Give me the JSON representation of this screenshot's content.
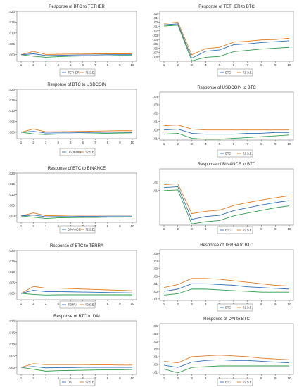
{
  "chart_data": [
    {
      "type": "line",
      "title": "Response of BTC to TETHER",
      "x": [
        1,
        2,
        3,
        4,
        5,
        6,
        7,
        8,
        9,
        10
      ],
      "ylim": [
        -0.003,
        0.02
      ],
      "yticks": [
        0.0,
        0.005,
        0.01,
        0.015,
        0.02
      ],
      "ytick_labels": [
        ".000",
        ".005",
        ".010",
        ".015",
        ".020"
      ],
      "legend": [
        "TETHER",
        "?2 S.E."
      ],
      "series": [
        {
          "name": "TETHER",
          "color": "#2f6fb5",
          "values": [
            0.0,
            0.0004,
            -0.0004,
            -0.0003,
            -0.0002,
            -0.0001,
            -0.0001,
            0.0,
            0.0,
            0.0
          ]
        },
        {
          "name": "?2 S.E.",
          "color": "#e07b20",
          "values": [
            0.0,
            0.0015,
            0.0001,
            0.0002,
            0.0003,
            0.0003,
            0.0004,
            0.0004,
            0.0004,
            0.0004
          ]
        },
        {
          "name": "",
          "color": "#2e9e4a",
          "values": [
            0.0,
            -0.0007,
            -0.0012,
            -0.0009,
            -0.0007,
            -0.0006,
            -0.0005,
            -0.0005,
            -0.0004,
            -0.0004
          ]
        }
      ]
    },
    {
      "type": "line",
      "title": "Response of TETHER to BTC",
      "x": [
        1,
        2,
        3,
        4,
        5,
        6,
        7,
        8,
        9,
        10
      ],
      "ylim": [
        -0.09,
        0.025
      ],
      "yticks": [
        0.02,
        0.01,
        0.0,
        -0.01,
        -0.02,
        -0.03,
        -0.04,
        -0.05,
        -0.06,
        -0.07,
        -0.08
      ],
      "ytick_labels": [
        ".02",
        ".01",
        ".00",
        "-.01",
        "-.02",
        "-.03",
        "-.04",
        "-.05",
        "-.06",
        "-.07",
        "-.08"
      ],
      "legend": [
        "BTC",
        "?2 S.E."
      ],
      "series": [
        {
          "name": "BTC",
          "color": "#2f6fb5",
          "values": [
            -0.006,
            -0.004,
            -0.083,
            -0.067,
            -0.064,
            -0.052,
            -0.05,
            -0.047,
            -0.045,
            -0.043
          ]
        },
        {
          "name": "?2 S.E.",
          "color": "#e07b20",
          "values": [
            -0.003,
            0.0,
            -0.075,
            -0.061,
            -0.058,
            -0.046,
            -0.044,
            -0.041,
            -0.04,
            -0.037
          ]
        },
        {
          "name": "",
          "color": "#2e9e4a",
          "values": [
            -0.009,
            -0.007,
            -0.089,
            -0.081,
            -0.079,
            -0.068,
            -0.065,
            -0.062,
            -0.06,
            -0.058
          ]
        }
      ]
    },
    {
      "type": "line",
      "title": "Response of BTC to USDCOIN",
      "x": [
        1,
        2,
        3,
        4,
        5,
        6,
        7,
        8,
        9,
        10
      ],
      "ylim": [
        -0.003,
        0.02
      ],
      "yticks": [
        0.0,
        0.005,
        0.01,
        0.015,
        0.02
      ],
      "ytick_labels": [
        ".000",
        ".005",
        ".010",
        ".015",
        ".020"
      ],
      "legend": [
        "USDCOIN",
        "?2 S.E."
      ],
      "series": [
        {
          "name": "USDCOIN",
          "color": "#2f6fb5",
          "values": [
            0.0,
            0.0004,
            -0.0004,
            -0.0003,
            -0.0003,
            -0.0002,
            -0.0001,
            0.0,
            0.0,
            0.0
          ]
        },
        {
          "name": "?2 S.E.",
          "color": "#e07b20",
          "values": [
            0.0,
            0.0015,
            0.0002,
            0.0002,
            0.0003,
            0.0004,
            0.0005,
            0.0006,
            0.0007,
            0.0007
          ]
        },
        {
          "name": "",
          "color": "#2e9e4a",
          "values": [
            0.0,
            -0.0008,
            -0.0011,
            -0.0009,
            -0.0009,
            -0.0008,
            -0.0007,
            -0.0005,
            -0.0004,
            -0.0003
          ]
        }
      ]
    },
    {
      "type": "line",
      "title": "Response of USDCOIN to BTC",
      "x": [
        1,
        2,
        3,
        4,
        5,
        6,
        7,
        8,
        9,
        10
      ],
      "ylim": [
        -0.012,
        0.045
      ],
      "yticks": [
        0.04,
        0.03,
        0.02,
        0.01,
        0.0,
        -0.01
      ],
      "ytick_labels": [
        ".04",
        ".03",
        ".02",
        ".01",
        ".00",
        "-.01"
      ],
      "legend": [
        "BTC",
        "?2 S.E."
      ],
      "series": [
        {
          "name": "BTC",
          "color": "#2f6fb5",
          "values": [
            0.0,
            0.001,
            -0.004,
            -0.005,
            -0.005,
            -0.005,
            -0.004,
            -0.004,
            -0.003,
            -0.003
          ]
        },
        {
          "name": "?2 S.E.",
          "color": "#e07b20",
          "values": [
            0.005,
            0.006,
            0.001,
            0.0,
            0.0,
            0.0,
            0.0,
            0.0,
            0.0,
            0.0
          ]
        },
        {
          "name": "",
          "color": "#2e9e4a",
          "values": [
            -0.005,
            -0.004,
            -0.01,
            -0.011,
            -0.011,
            -0.01,
            -0.009,
            -0.008,
            -0.007,
            -0.006
          ]
        }
      ]
    },
    {
      "type": "line",
      "title": "Response of BTC to BINANCE",
      "x": [
        1,
        2,
        3,
        4,
        5,
        6,
        7,
        8,
        9,
        10
      ],
      "ylim": [
        -0.003,
        0.02
      ],
      "yticks": [
        0.0,
        0.005,
        0.01,
        0.015,
        0.02
      ],
      "ytick_labels": [
        ".000",
        ".005",
        ".010",
        ".015",
        ".020"
      ],
      "legend": [
        "BINANCE",
        "?2 S.E."
      ],
      "series": [
        {
          "name": "BINANCE",
          "color": "#2f6fb5",
          "values": [
            0.0,
            0.0004,
            -0.0004,
            -0.0003,
            -0.0003,
            -0.0002,
            -0.0002,
            -0.0001,
            -0.0001,
            -0.0001
          ]
        },
        {
          "name": "?2 S.E.",
          "color": "#e07b20",
          "values": [
            0.0,
            0.0014,
            0.0001,
            0.0002,
            0.0003,
            0.0003,
            0.0003,
            0.0004,
            0.0004,
            0.0004
          ]
        },
        {
          "name": "",
          "color": "#2e9e4a",
          "values": [
            0.0,
            -0.0006,
            -0.0012,
            -0.0009,
            -0.0008,
            -0.0007,
            -0.0007,
            -0.0006,
            -0.0006,
            -0.0005
          ]
        }
      ]
    },
    {
      "type": "line",
      "title": "Response of BINANCE to BTC",
      "x": [
        1,
        2,
        3,
        4,
        5,
        6,
        7,
        8,
        9,
        10
      ],
      "ylim": [
        -0.13,
        0.065
      ],
      "yticks": [
        0.02,
        -0.01
      ],
      "ytick_labels": [
        ".02",
        "-.01"
      ],
      "tick_labels_top": [
        ".02",
        ".00",
        "-.01"
      ],
      "legend": [
        "BTC",
        "?2 S.E."
      ],
      "series": [
        {
          "name": "BTC",
          "color": "#2f6fb5",
          "values": [
            0.0,
            0.003,
            -0.11,
            -0.1,
            -0.096,
            -0.08,
            -0.07,
            -0.06,
            -0.052,
            -0.045
          ]
        },
        {
          "name": "?2 S.E.",
          "color": "#e07b20",
          "values": [
            0.01,
            0.013,
            -0.09,
            -0.082,
            -0.078,
            -0.062,
            -0.052,
            -0.043,
            -0.035,
            -0.028
          ]
        },
        {
          "name": "",
          "color": "#2e9e4a",
          "values": [
            -0.01,
            -0.008,
            -0.126,
            -0.118,
            -0.114,
            -0.098,
            -0.088,
            -0.079,
            -0.07,
            -0.063
          ]
        }
      ]
    },
    {
      "type": "line",
      "title": "Response of BTC to TERRA",
      "x": [
        1,
        2,
        3,
        4,
        5,
        6,
        7,
        8,
        9,
        10
      ],
      "ylim": [
        -0.003,
        0.02
      ],
      "yticks": [
        0.0,
        0.005,
        0.01,
        0.015,
        0.02
      ],
      "ytick_labels": [
        ".000",
        ".005",
        ".010",
        ".015",
        ".020"
      ],
      "legend": [
        "TERRA",
        "?2 S.E."
      ],
      "series": [
        {
          "name": "TERRA",
          "color": "#2f6fb5",
          "values": [
            0.0,
            0.0014,
            0.0008,
            0.0008,
            0.0007,
            0.0006,
            0.0005,
            0.0004,
            0.0003,
            0.0002
          ]
        },
        {
          "name": "?2 S.E.",
          "color": "#e07b20",
          "values": [
            0.0,
            0.0032,
            0.0024,
            0.0024,
            0.0022,
            0.002,
            0.0018,
            0.0016,
            0.0014,
            0.0012
          ]
        },
        {
          "name": "",
          "color": "#2e9e4a",
          "values": [
            0.0,
            -0.0005,
            -0.0008,
            -0.0007,
            -0.0007,
            -0.0007,
            -0.0007,
            -0.0007,
            -0.0007,
            -0.0007
          ]
        }
      ]
    },
    {
      "type": "line",
      "title": "Response of TERRA to BTC",
      "x": [
        1,
        2,
        3,
        4,
        5,
        6,
        7,
        8,
        9,
        10
      ],
      "ylim": [
        -0.012,
        0.055
      ],
      "yticks": [
        0.05,
        0.04,
        0.03,
        0.02,
        0.01,
        0.0,
        -0.01
      ],
      "ytick_labels": [
        ".05",
        ".04",
        ".03",
        ".02",
        ".01",
        ".00",
        "-.01"
      ],
      "legend": [
        "BTC",
        "?2 S.E."
      ],
      "series": [
        {
          "name": "BTC",
          "color": "#2f6fb5",
          "values": [
            0.0,
            0.003,
            0.01,
            0.01,
            0.009,
            0.008,
            0.006,
            0.005,
            0.004,
            0.003
          ]
        },
        {
          "name": "?2 S.E.",
          "color": "#e07b20",
          "values": [
            0.005,
            0.009,
            0.017,
            0.017,
            0.016,
            0.014,
            0.012,
            0.01,
            0.008,
            0.007
          ]
        },
        {
          "name": "",
          "color": "#2e9e4a",
          "values": [
            -0.005,
            -0.003,
            0.003,
            0.003,
            0.002,
            0.001,
            0.0,
            -0.001,
            -0.001,
            -0.001
          ]
        }
      ]
    },
    {
      "type": "line",
      "title": "Response of BTC to DAI",
      "x": [
        1,
        2,
        3,
        4,
        5,
        6,
        7,
        8,
        9,
        10
      ],
      "ylim": [
        -0.003,
        0.02
      ],
      "yticks": [
        0.0,
        0.005,
        0.01,
        0.015,
        0.02
      ],
      "ytick_labels": [
        ".000",
        ".005",
        ".010",
        ".015",
        ".020"
      ],
      "legend": [
        "DAI",
        "?2 S.E."
      ],
      "series": [
        {
          "name": "DAI",
          "color": "#2f6fb5",
          "values": [
            0.0,
            0.0004,
            -0.0002,
            -0.0001,
            -0.0001,
            0.0,
            0.0,
            0.0,
            0.0,
            0.0
          ]
        },
        {
          "name": "?2 S.E.",
          "color": "#e07b20",
          "values": [
            0.0,
            0.0016,
            0.0012,
            0.0012,
            0.0012,
            0.0012,
            0.0011,
            0.0011,
            0.001,
            0.001
          ]
        },
        {
          "name": "",
          "color": "#2e9e4a",
          "values": [
            0.0,
            -0.0008,
            -0.0016,
            -0.0014,
            -0.0013,
            -0.0012,
            -0.0011,
            -0.001,
            -0.001,
            -0.0009
          ]
        }
      ]
    },
    {
      "type": "line",
      "title": "Response of DAI to BTC",
      "x": [
        1,
        2,
        3,
        4,
        5,
        6,
        7,
        8,
        9,
        10
      ],
      "ylim": [
        -0.013,
        0.053
      ],
      "yticks": [
        0.05,
        0.04,
        0.03,
        0.02,
        0.01,
        0.0,
        -0.01
      ],
      "ytick_labels": [
        ".05",
        ".04",
        ".03",
        ".02",
        ".01",
        ".00",
        "-.01"
      ],
      "legend": [
        "BTC",
        "?2 S.E."
      ],
      "series": [
        {
          "name": "BTC",
          "color": "#2f6fb5",
          "values": [
            -0.001,
            -0.004,
            0.003,
            0.005,
            0.006,
            0.005,
            0.005,
            0.004,
            0.003,
            0.002
          ]
        },
        {
          "name": "?2 S.E.",
          "color": "#e07b20",
          "values": [
            0.004,
            0.002,
            0.01,
            0.011,
            0.012,
            0.011,
            0.01,
            0.008,
            0.007,
            0.006
          ]
        },
        {
          "name": "",
          "color": "#2e9e4a",
          "values": [
            -0.006,
            -0.011,
            -0.004,
            -0.003,
            -0.002,
            -0.002,
            -0.002,
            -0.002,
            -0.002,
            -0.002
          ]
        }
      ]
    }
  ]
}
